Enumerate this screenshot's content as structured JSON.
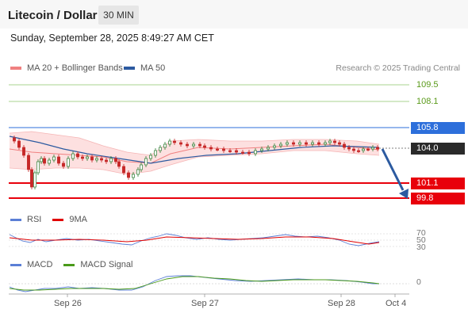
{
  "header": {
    "title": "Litecoin / Dollar",
    "timeframe": "30 MIN"
  },
  "datetime": "Sunday, September 28, 2025 8:49:27 AM CET",
  "legend": {
    "bollinger": {
      "label": "MA 20 + Bollinger Bands",
      "color": "#f08080"
    },
    "ma50": {
      "label": "MA 50",
      "color": "#2c5aa0"
    }
  },
  "credit": "Research © 2025 Trading Central",
  "levels": {
    "r2": "109.5",
    "r1": "108.1",
    "pivot": "105.8",
    "last": "104.0",
    "s1": "101.1",
    "s2": "99.8"
  },
  "rsi": {
    "label": "RSI",
    "signal_label": "9MA",
    "rsi_color": "#5b7fd6",
    "signal_color": "#e00000",
    "levels": [
      "70",
      "50",
      "30"
    ]
  },
  "macd": {
    "label": "MACD",
    "signal_label": "MACD Signal",
    "macd_color": "#5b7fd6",
    "signal_color": "#4a9a1a",
    "zero": "0"
  },
  "xaxis": [
    "Sep 26",
    "Sep 27",
    "Sep 28",
    "Oct 4"
  ],
  "colors": {
    "up": "#2e7d32",
    "down": "#c62828",
    "band": "#fde0e0",
    "accent_blue": "#2d6fdb",
    "red": "#e8000b"
  }
}
